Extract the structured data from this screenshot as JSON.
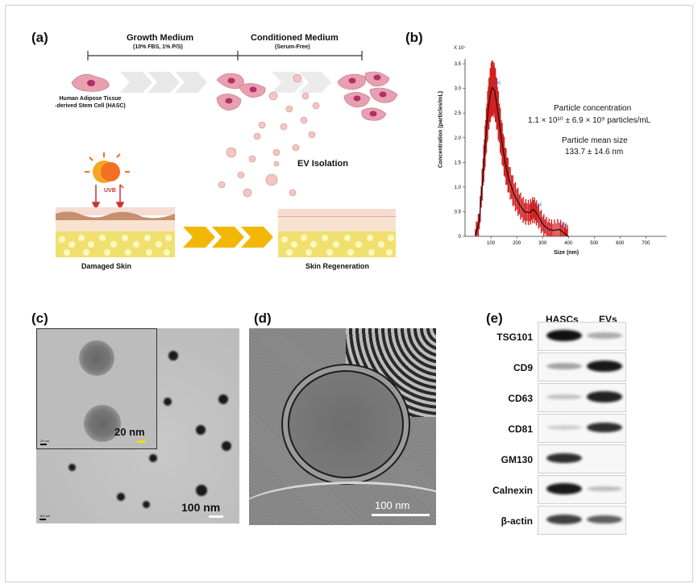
{
  "labels": {
    "a": "(a)",
    "b": "(b)",
    "c": "(c)",
    "d": "(d)",
    "e": "(e)"
  },
  "panel_a": {
    "growth_medium": "Growth Medium",
    "growth_medium_sub": "(10% FBS, 1% P/S)",
    "conditioned_medium": "Conditioned Medium",
    "conditioned_medium_sub": "(Serum-Free)",
    "hasc_line1": "Human Adipose Tissue",
    "hasc_line2": "-derived Stem Cell (HASC)",
    "uvb": "UVB",
    "ev_isolation": "EV Isolation",
    "damaged_skin": "Damaged Skin",
    "skin_regeneration": "Skin Regeneration",
    "colors": {
      "cell": "#e8a0b0",
      "nucleus": "#b0306a",
      "arrow_grey": "#e6e6e6",
      "arrow_gold": "#f2b705",
      "sun": "#f36f21"
    }
  },
  "panel_b": {
    "multiplier": "X 10⁷",
    "ylabel": "Concentration (particles/mL)",
    "xlabel": "Size (nm)",
    "concentration_title": "Particle concentration",
    "concentration_value": "1.1 × 10¹⁰ ± 6.9 × 10⁹ particles/mL",
    "mean_title": "Particle mean size",
    "mean_value": "133.7 ± 14.6 nm",
    "peak_labels": [
      "105",
      "265",
      "365"
    ]
  },
  "chart_data": {
    "type": "line",
    "xlabel": "Size (nm)",
    "ylabel": "Concentration (particles/mL)",
    "xlim": [
      0,
      780
    ],
    "ylim": [
      0,
      3.6
    ],
    "xticks": [
      100,
      200,
      300,
      400,
      500,
      600,
      700
    ],
    "yticks": [
      0,
      0.5,
      1.0,
      1.5,
      2.0,
      2.5,
      3.0,
      3.5
    ],
    "ytick_labels": [
      "0",
      "0.5",
      "1.0",
      "1.5",
      "2.0",
      "2.5",
      "3.0",
      "3.5"
    ],
    "x": [
      40,
      55,
      70,
      80,
      90,
      100,
      105,
      115,
      125,
      140,
      155,
      170,
      190,
      210,
      230,
      250,
      265,
      280,
      300,
      320,
      340,
      365,
      385,
      400
    ],
    "y": [
      0.02,
      0.3,
      1.3,
      2.0,
      2.6,
      2.95,
      3.02,
      2.95,
      2.6,
      2.0,
      1.5,
      1.15,
      0.85,
      0.65,
      0.5,
      0.48,
      0.55,
      0.45,
      0.25,
      0.15,
      0.12,
      0.14,
      0.06,
      0.0
    ],
    "series_color": "#d42020"
  },
  "panel_c": {
    "inset_scale": "20 nm",
    "main_scale": "100 nm",
    "inset_tiny": "20 nm",
    "main_tiny": "100 nm"
  },
  "panel_d": {
    "scale": "100 nm"
  },
  "panel_e": {
    "col_hascs": "HASCs",
    "col_evs": "EVs",
    "rows": [
      {
        "name": "TSG101",
        "hasc": 1.0,
        "ev": 0.2
      },
      {
        "name": "CD9",
        "hasc": 0.25,
        "ev": 0.95
      },
      {
        "name": "CD63",
        "hasc": 0.1,
        "ev": 0.9
      },
      {
        "name": "CD81",
        "hasc": 0.02,
        "ev": 0.85
      },
      {
        "name": "GM130",
        "hasc": 0.85,
        "ev": 0.0
      },
      {
        "name": "Calnexin",
        "hasc": 0.95,
        "ev": 0.12
      },
      {
        "name": "β-actin",
        "hasc": 0.75,
        "ev": 0.6
      }
    ]
  }
}
